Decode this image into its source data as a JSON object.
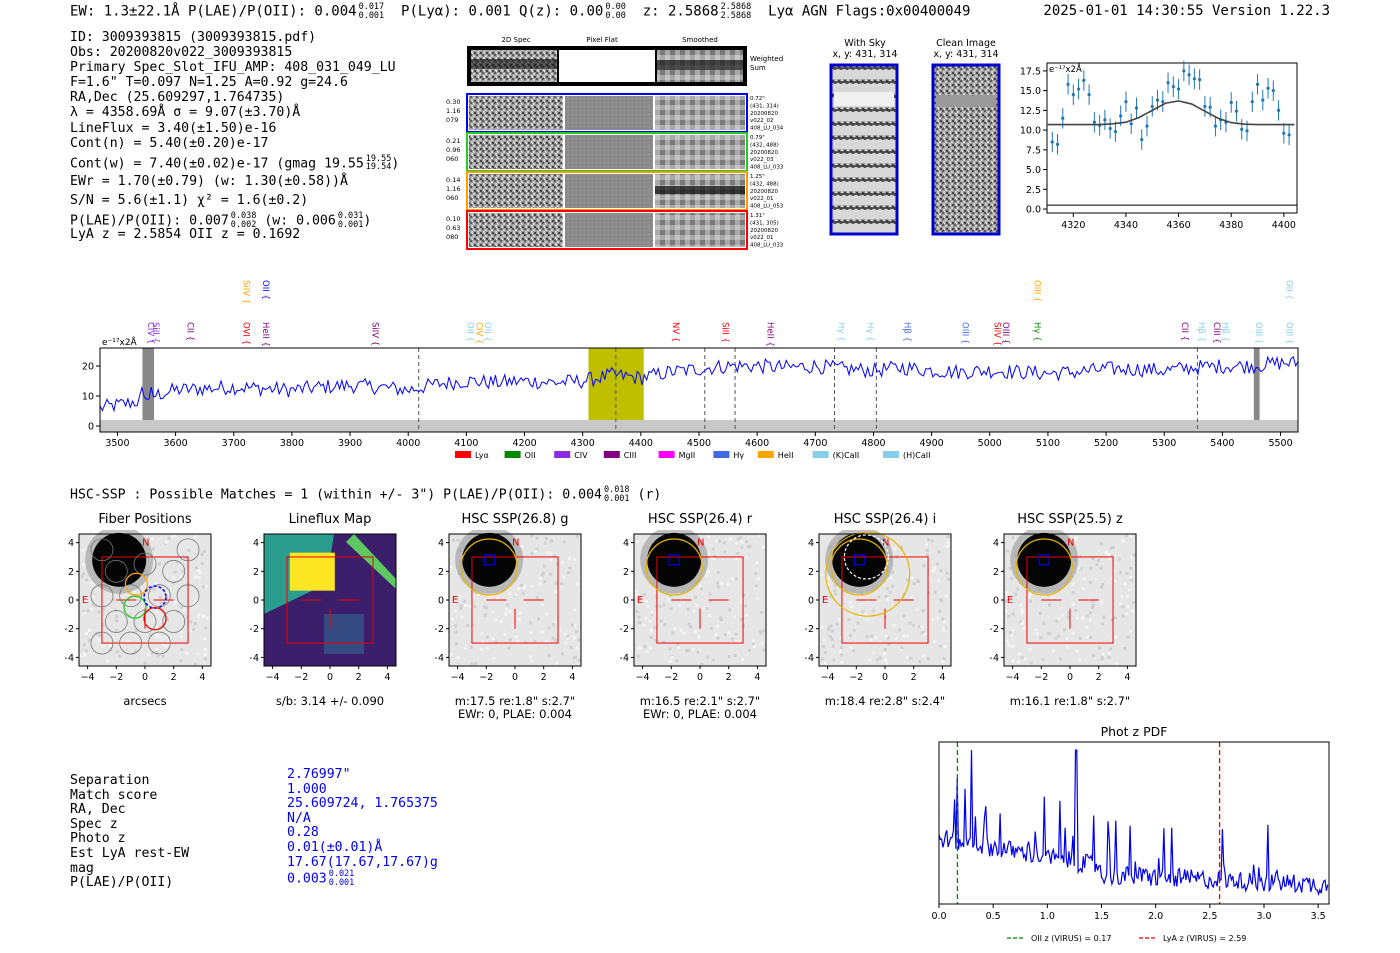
{
  "header": {
    "left": "EW: 1.3±22.1Å  P(LAE)/P(OII): 0.004",
    "left_frac_top": "0.017",
    "left_frac_bot": "0.001",
    "mid1": "P(Lyα): 0.001  Q(z): 0.00",
    "mid1_frac_top": "0.00",
    "mid1_frac_bot": "0.00",
    "mid2": "z: 2.5868",
    "mid2_frac_top": "2.5868",
    "mid2_frac_bot": "2.5868",
    "mid3": "Lyα  AGN  Flags:0x00400049",
    "right": "2025-01-01 14:30:55  Version 1.22.3"
  },
  "info": {
    "lines": [
      "ID: 3009393815 (3009393815.pdf)",
      "Obs: 20200820v022_3009393815",
      "Primary Spec_Slot_IFU_AMP: 408_031_049_LU",
      "F=1.6\"  T=0.097  N=1.25  A=0.92  g=24.6",
      "RA,Dec (25.609297,1.764735)",
      "λ = 4358.69Å  σ = 9.07(±3.70)Å",
      "LineFlux = 3.40(±1.50)e-16",
      "Cont(n) = 5.40(±0.20)e-17"
    ],
    "contw": "Cont(w) = 7.40(±0.02)e-17 (gmag 19.55",
    "contw_top": "19.55",
    "contw_bot": "19.54",
    "ewr": "EWr = 1.70(±0.79) (w: 1.30(±0.58))Å",
    "sn": "S/N = 5.6(±1.1)  χ² = 1.6(±0.2)",
    "plae": "P(LAE)/P(OII): 0.007",
    "plae_top": "0.038",
    "plae_bot": "0.002",
    "plae_w": "(w: 0.006",
    "plae_w_top": "0.031",
    "plae_w_bot": "0.001",
    "lyaz": "LyA z = 2.5854  OII z = 0.1692"
  },
  "spec2d": {
    "col_titles": [
      "2D Spec",
      "Pixel Flat",
      "Smoothed"
    ],
    "weighted_label": "Weighted Sum",
    "rows": [
      {
        "left": [
          "0.30",
          "1.16",
          "079"
        ],
        "right": [
          "0.72\"",
          "(431, 314)",
          "20200820",
          "v022_02",
          "408_LU_034"
        ],
        "color": "#0000ff"
      },
      {
        "left": [
          "0.21",
          "0.96",
          "060"
        ],
        "right": [
          "0.79\"",
          "(432, 488)",
          "20200820",
          "v022_03",
          "408_LU_033"
        ],
        "color": "#22cc22"
      },
      {
        "left": [
          "0.14",
          "1.16",
          "060"
        ],
        "right": [
          "1.25\"",
          "(432, 488)",
          "20200820",
          "v022_01",
          "408_LU_053"
        ],
        "color": "#ff9900"
      },
      {
        "left": [
          "0.10",
          "0.63",
          "080"
        ],
        "right": [
          "1.31\"",
          "(431, 305)",
          "20200820",
          "v022_01",
          "408_LU_033"
        ],
        "color": "#ff0000"
      }
    ]
  },
  "sky": {
    "with_sky_title": "With Sky",
    "with_sky_xy": "x, y: 431, 314",
    "clean_title": "Clean Image",
    "clean_xy": "x, y: 431, 314"
  },
  "hsc_header": {
    "text": "HSC-SSP : Possible Matches = 1 (within +/- 3\")  P(LAE)/P(OII): 0.004",
    "top": "0.018",
    "bot": "0.001",
    "suffix": "(r)"
  },
  "cutouts": [
    {
      "title": "Fiber Positions",
      "caption1": "arcsecs",
      "caption2": ""
    },
    {
      "title": "Lineflux Map",
      "caption1": "s/b: 3.14 +/- 0.090",
      "caption2": ""
    },
    {
      "title": "HSC SSP(26.8) g",
      "caption1": "m:17.5  re:1.8\"  s:2.7\"",
      "caption2": "EWr: 0, PLAE: 0.004"
    },
    {
      "title": "HSC SSP(26.4) r",
      "caption1": "m:16.5  re:2.1\"  s:2.7\"",
      "caption2": "EWr: 0, PLAE: 0.004"
    },
    {
      "title": "HSC SSP(26.4) i",
      "caption1": "m:18.4  re:2.8\"  s:2.4\"",
      "caption2": ""
    },
    {
      "title": "HSC SSP(25.5) z",
      "caption1": "m:16.1  re:1.8\"  s:2.7\"",
      "caption2": ""
    }
  ],
  "cutout_ticks": [
    "4",
    "2",
    "0",
    "−2",
    "−4"
  ],
  "cutout_xticks": [
    "−4",
    "−2",
    "0",
    "2",
    "4"
  ],
  "cutout_marks": {
    "north": "N",
    "east": "E"
  },
  "match": {
    "labels": [
      "Separation",
      "Match score",
      "RA, Dec",
      "Spec z",
      "Photo z",
      "Est LyA rest-EW",
      "mag",
      "P(LAE)/P(OII)"
    ],
    "values": [
      "2.76997\"",
      "1.000",
      "25.609724, 1.765375",
      "N/A",
      "0.28",
      "0.01(±0.01)Å",
      "17.67(17.67,17.67)g",
      "0.003"
    ],
    "plae_top": "0.021",
    "plae_bot": "0.001"
  },
  "legend_lines": [
    {
      "label": "Lyα",
      "color": "#ff0000"
    },
    {
      "label": "OII",
      "color": "#008800"
    },
    {
      "label": "CIV",
      "color": "#8a2be2"
    },
    {
      "label": "CIII",
      "color": "#800080"
    },
    {
      "label": "MgII",
      "color": "#ff00ff"
    },
    {
      "label": "Hγ",
      "color": "#4169e1"
    },
    {
      "label": "HeII",
      "color": "#ffa500"
    },
    {
      "label": "(K)CaII",
      "color": "#87ceeb"
    },
    {
      "label": "(H)CaII",
      "color": "#87ceeb"
    }
  ],
  "line_labels": [
    {
      "label": "CIV",
      "x": 3547,
      "color": "#8a2be2",
      "row": 0
    },
    {
      "label": "SiII",
      "x": 3556,
      "color": "#8a2be2",
      "row": 0
    },
    {
      "label": "CII",
      "x": 3615,
      "color": "#800080",
      "row": 0
    },
    {
      "label": "SiIV",
      "x": 3712,
      "color": "#ffa500",
      "row": 1
    },
    {
      "label": "OVI",
      "x": 3712,
      "color": "#ff0000",
      "row": 0
    },
    {
      "label": "OII",
      "x": 3745,
      "color": "#0000ff",
      "row": 1
    },
    {
      "label": "HeII",
      "x": 3745,
      "color": "#800080",
      "row": 0
    },
    {
      "label": "SiIV",
      "x": 3933,
      "color": "#800080",
      "row": 0
    },
    {
      "label": "OII",
      "x": 4097,
      "color": "#87ceeb",
      "row": 0
    },
    {
      "label": "CIV",
      "x": 4112,
      "color": "#ffa500",
      "row": 0
    },
    {
      "label": "OII",
      "x": 4127,
      "color": "#87ceeb",
      "row": 0
    },
    {
      "label": "NV",
      "x": 4450,
      "color": "#ff0000",
      "row": 0
    },
    {
      "label": "SiII",
      "x": 4535,
      "color": "#ff0000",
      "row": 0
    },
    {
      "label": "HeII",
      "x": 4613,
      "color": "#800080",
      "row": 0
    },
    {
      "label": "Hγ",
      "x": 4735,
      "color": "#87ceeb",
      "row": 0
    },
    {
      "label": "Hγ",
      "x": 4785,
      "color": "#87ceeb",
      "row": 0
    },
    {
      "label": "Hβ",
      "x": 4848,
      "color": "#4169e1",
      "row": 0
    },
    {
      "label": "OIII",
      "x": 4948,
      "color": "#4169e1",
      "row": 0
    },
    {
      "label": "SiIV",
      "x": 5003,
      "color": "#ff0000",
      "row": 0
    },
    {
      "label": "OIII",
      "x": 5018,
      "color": "#800080",
      "row": 0
    },
    {
      "label": "OIII",
      "x": 5072,
      "color": "#ffa500",
      "row": 1
    },
    {
      "label": "Hγ",
      "x": 5072,
      "color": "#008800",
      "row": 0
    },
    {
      "label": "CII",
      "x": 5325,
      "color": "#800080",
      "row": 0
    },
    {
      "label": "Hβ",
      "x": 5355,
      "color": "#87ceeb",
      "row": 0
    },
    {
      "label": "CIII",
      "x": 5380,
      "color": "#800080",
      "row": 0
    },
    {
      "label": "Hβ",
      "x": 5395,
      "color": "#87ceeb",
      "row": 0
    },
    {
      "label": "OIII",
      "x": 5453,
      "color": "#87ceeb",
      "row": 0
    },
    {
      "label": "OII",
      "x": 5505,
      "color": "#87ceeb",
      "row": 1
    },
    {
      "label": "OIII",
      "x": 5505,
      "color": "#87ceeb",
      "row": 0
    }
  ],
  "photz": {
    "title": "Phot z PDF",
    "oii_label": "OII z (VIRUS) = 0.17",
    "lya_label": "LyA z (VIRUS) = 2.59"
  },
  "chart_data": [
    {
      "type": "line",
      "title": "",
      "ylabel": "e⁻¹⁷x2Å",
      "xlim": [
        4310,
        4405
      ],
      "ylim": [
        -0.5,
        18.5
      ],
      "xticks": [
        4320,
        4340,
        4360,
        4380,
        4400
      ],
      "yticks": [
        0.0,
        2.5,
        5.0,
        7.5,
        10.0,
        12.5,
        15.0,
        17.5
      ],
      "series": [
        {
          "x": [
            4312,
            4314,
            4316,
            4318,
            4320,
            4322,
            4324,
            4326,
            4328,
            4330,
            4332,
            4334,
            4336,
            4338,
            4340,
            4342,
            4344,
            4346,
            4348,
            4350,
            4352,
            4354,
            4356,
            4358,
            4360,
            4362,
            4364,
            4366,
            4368,
            4370,
            4372,
            4374,
            4376,
            4378,
            4380,
            4382,
            4384,
            4386,
            4388,
            4390,
            4392,
            4394,
            4396,
            4398,
            4400,
            4402
          ],
          "y": [
            8.5,
            8.2,
            11.5,
            15.8,
            14.5,
            15.2,
            16.3,
            14.5,
            11.0,
            10.6,
            11.3,
            10.2,
            9.8,
            11.8,
            13.6,
            10.8,
            12.8,
            8.8,
            10.5,
            13.0,
            13.8,
            13.6,
            16.0,
            15.5,
            15.2,
            17.5,
            17.0,
            16.5,
            16.4,
            13.0,
            12.9,
            10.5,
            11.3,
            11.0,
            13.5,
            12.4,
            10.1,
            9.9,
            13.6,
            15.8,
            13.8,
            15.3,
            15.0,
            12.5,
            9.6,
            9.4
          ]
        },
        {
          "x": [
            4310,
            4315,
            4320,
            4325,
            4330,
            4335,
            4340,
            4345,
            4350,
            4355,
            4360,
            4365,
            4370,
            4375,
            4380,
            4385,
            4390,
            4395,
            4400,
            4404
          ],
          "y": [
            10.7,
            10.7,
            10.7,
            10.7,
            10.7,
            10.8,
            11.0,
            11.6,
            12.5,
            13.4,
            13.7,
            13.3,
            12.4,
            11.5,
            10.95,
            10.75,
            10.7,
            10.7,
            10.7,
            10.7
          ]
        }
      ]
    },
    {
      "type": "line",
      "title": "",
      "ylabel": "e⁻¹⁷x2Å",
      "xlim": [
        3470,
        5530
      ],
      "ylim": [
        -2,
        26
      ],
      "xticks": [
        3500,
        3600,
        3700,
        3800,
        3900,
        4000,
        4100,
        4200,
        4300,
        4400,
        4500,
        4600,
        4700,
        4800,
        4900,
        5000,
        5100,
        5200,
        5300,
        5400,
        5500
      ],
      "yticks": [
        0,
        10,
        20
      ],
      "highlight_band": [
        4310,
        4405
      ],
      "vlines": [
        4018,
        4357,
        4510,
        4562,
        4733,
        4805,
        5357
      ],
      "masked": [
        [
          3543,
          3563
        ],
        [
          5454,
          5464
        ]
      ],
      "series": [
        {
          "name": "flux",
          "x": [
            3470,
            3500,
            3530,
            3560,
            3600,
            3650,
            3700,
            3750,
            3800,
            3850,
            3900,
            3950,
            4000,
            4050,
            4100,
            4150,
            4200,
            4250,
            4300,
            4350,
            4400,
            4450,
            4500,
            4550,
            4600,
            4650,
            4700,
            4750,
            4800,
            4850,
            4900,
            4950,
            5000,
            5050,
            5100,
            5150,
            5200,
            5250,
            5300,
            5350,
            5400,
            5450,
            5500,
            5530
          ],
          "y": [
            6,
            7,
            8,
            10,
            12,
            12.5,
            13,
            12.5,
            12,
            13,
            13.5,
            13,
            12,
            14,
            15,
            14.5,
            15,
            14.5,
            15,
            17,
            16,
            18,
            19,
            20,
            20,
            19.5,
            20,
            19,
            18.5,
            19.5,
            18.5,
            18,
            18.5,
            18,
            17.5,
            18,
            19,
            19,
            18.5,
            19.5,
            20,
            20,
            21,
            21
          ]
        }
      ]
    },
    {
      "type": "line",
      "title": "Phot z PDF",
      "xlim": [
        0.0,
        3.6
      ],
      "xticks": [
        0.0,
        0.5,
        1.0,
        1.5,
        2.0,
        2.5,
        3.0,
        3.5
      ],
      "series": [
        {
          "name": "OII z (VIRUS) = 0.17",
          "x": [
            0.17,
            0.17
          ],
          "y": [
            0,
            1
          ]
        },
        {
          "name": "LyA z (VIRUS) = 2.59",
          "x": [
            2.59,
            2.59
          ],
          "y": [
            0,
            1
          ]
        }
      ]
    }
  ]
}
